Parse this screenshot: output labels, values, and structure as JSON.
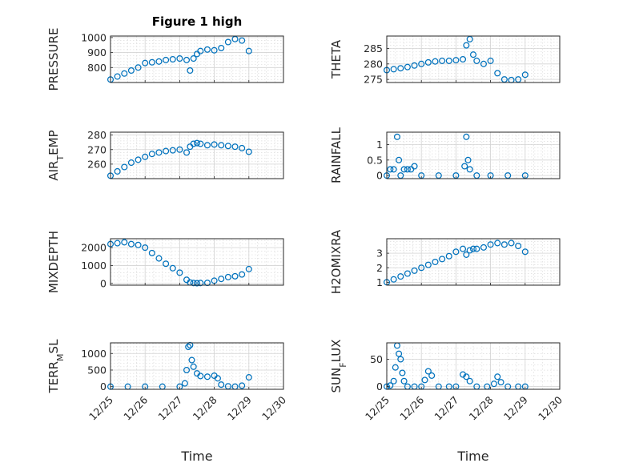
{
  "chart_data": [
    {
      "type": "scatter",
      "title": "Figure 1 high",
      "ylabel": "PRESSURE",
      "ylim": [
        700,
        1010
      ],
      "yticks": [
        800,
        900,
        1000
      ],
      "ytick_labels": [
        "800",
        "900",
        "1000"
      ],
      "xlim": [
        0,
        5
      ],
      "xlabel": "",
      "xtick_labels": [],
      "marker_color": "#0072BD",
      "grid": "on",
      "x": [
        0,
        0.2,
        0.4,
        0.6,
        0.8,
        1.0,
        1.2,
        1.4,
        1.6,
        1.8,
        2.0,
        2.2,
        2.3,
        2.4,
        2.5,
        2.6,
        2.8,
        3.0,
        3.2,
        3.4,
        3.6,
        3.8,
        4.0
      ],
      "y": [
        720,
        740,
        760,
        780,
        800,
        830,
        835,
        840,
        850,
        855,
        860,
        850,
        780,
        860,
        890,
        910,
        920,
        915,
        930,
        970,
        990,
        980,
        910
      ]
    },
    {
      "type": "scatter",
      "title": "",
      "ylabel": "THETA",
      "ylim": [
        274,
        289
      ],
      "yticks": [
        275,
        280,
        285
      ],
      "ytick_labels": [
        "275",
        "280",
        "285"
      ],
      "xlim": [
        0,
        5
      ],
      "xlabel": "",
      "xtick_labels": [],
      "marker_color": "#0072BD",
      "grid": "on",
      "x": [
        0,
        0.2,
        0.4,
        0.6,
        0.8,
        1.0,
        1.2,
        1.4,
        1.6,
        1.8,
        2.0,
        2.2,
        2.3,
        2.4,
        2.5,
        2.6,
        2.8,
        3.0,
        3.2,
        3.4,
        3.6,
        3.8,
        4.0
      ],
      "y": [
        278,
        278.3,
        278.6,
        279,
        279.5,
        280,
        280.5,
        280.8,
        281,
        281,
        281.2,
        281.5,
        286,
        288,
        283,
        281,
        280,
        281,
        277,
        275,
        274.8,
        275,
        276.5
      ]
    },
    {
      "type": "scatter",
      "title": "",
      "ylabel": "AIR_TEMP",
      "ylim": [
        250,
        282
      ],
      "yticks": [
        260,
        270,
        280
      ],
      "ytick_labels": [
        "260",
        "270",
        "280"
      ],
      "xlim": [
        0,
        5
      ],
      "xlabel": "",
      "xtick_labels": [],
      "marker_color": "#0072BD",
      "grid": "on",
      "x": [
        0,
        0.2,
        0.4,
        0.6,
        0.8,
        1.0,
        1.2,
        1.4,
        1.6,
        1.8,
        2.0,
        2.2,
        2.3,
        2.4,
        2.5,
        2.6,
        2.8,
        3.0,
        3.2,
        3.4,
        3.6,
        3.8,
        4.0
      ],
      "y": [
        252,
        255,
        258,
        261,
        263,
        265,
        267,
        268,
        269,
        269.5,
        270,
        268,
        272,
        274,
        274.5,
        274,
        273,
        273.5,
        273,
        272.5,
        272,
        271,
        268.5
      ]
    },
    {
      "type": "scatter",
      "title": "",
      "ylabel": "RAINFALL",
      "ylim": [
        -0.1,
        1.4
      ],
      "yticks": [
        0,
        0.5,
        1
      ],
      "ytick_labels": [
        "0",
        "0.5",
        "1"
      ],
      "xlim": [
        0,
        5
      ],
      "xlabel": "",
      "xtick_labels": [],
      "marker_color": "#0072BD",
      "grid": "on",
      "x": [
        0,
        0.1,
        0.2,
        0.3,
        0.35,
        0.4,
        0.5,
        0.6,
        0.7,
        0.8,
        1.0,
        1.5,
        2.0,
        2.25,
        2.3,
        2.35,
        2.4,
        2.6,
        3.0,
        3.5,
        4.0
      ],
      "y": [
        0,
        0.2,
        0.2,
        1.25,
        0.5,
        0,
        0.2,
        0.2,
        0.2,
        0.3,
        0,
        0,
        0,
        0.3,
        1.25,
        0.5,
        0.2,
        0,
        0,
        0,
        0
      ]
    },
    {
      "type": "scatter",
      "title": "",
      "ylabel": "MIXDEPTH",
      "ylim": [
        -100,
        2500
      ],
      "yticks": [
        0,
        1000,
        2000
      ],
      "ytick_labels": [
        "0",
        "1000",
        "2000"
      ],
      "xlim": [
        0,
        5
      ],
      "xlabel": "",
      "xtick_labels": [],
      "marker_color": "#0072BD",
      "grid": "on",
      "x": [
        0,
        0.2,
        0.4,
        0.6,
        0.8,
        1.0,
        1.2,
        1.4,
        1.6,
        1.8,
        2.0,
        2.2,
        2.3,
        2.4,
        2.5,
        2.6,
        2.8,
        3.0,
        3.2,
        3.4,
        3.6,
        3.8,
        4.0
      ],
      "y": [
        2200,
        2250,
        2300,
        2200,
        2150,
        2000,
        1700,
        1400,
        1100,
        850,
        600,
        200,
        50,
        20,
        10,
        20,
        30,
        150,
        250,
        350,
        400,
        500,
        800
      ]
    },
    {
      "type": "scatter",
      "title": "",
      "ylabel": "H2OMIXRA",
      "ylim": [
        0.8,
        4.0
      ],
      "yticks": [
        1,
        2,
        3
      ],
      "ytick_labels": [
        "1",
        "2",
        "3"
      ],
      "xlim": [
        0,
        5
      ],
      "xlabel": "",
      "xtick_labels": [],
      "marker_color": "#0072BD",
      "grid": "on",
      "x": [
        0,
        0.2,
        0.4,
        0.6,
        0.8,
        1.0,
        1.2,
        1.4,
        1.6,
        1.8,
        2.0,
        2.2,
        2.3,
        2.4,
        2.5,
        2.6,
        2.8,
        3.0,
        3.2,
        3.4,
        3.6,
        3.8,
        4.0
      ],
      "y": [
        1.0,
        1.2,
        1.4,
        1.6,
        1.8,
        2.0,
        2.2,
        2.4,
        2.6,
        2.8,
        3.1,
        3.3,
        2.9,
        3.2,
        3.3,
        3.3,
        3.4,
        3.6,
        3.7,
        3.6,
        3.7,
        3.5,
        3.1
      ]
    },
    {
      "type": "scatter",
      "title": "",
      "ylabel": "TERR_MSL",
      "ylim": [
        -80,
        1320
      ],
      "yticks": [
        0,
        500,
        1000
      ],
      "ytick_labels": [
        "0",
        "500",
        "1000"
      ],
      "xlim": [
        0,
        5
      ],
      "xlabel": "Time",
      "xticks": [
        0,
        1,
        2,
        3,
        4,
        5
      ],
      "xtick_labels": [
        "12/25",
        "12/26",
        "12/27",
        "12/28",
        "12/29",
        "12/30"
      ],
      "marker_color": "#0072BD",
      "grid": "on",
      "x": [
        0,
        0.5,
        1.0,
        1.5,
        2.0,
        2.15,
        2.2,
        2.25,
        2.3,
        2.35,
        2.4,
        2.5,
        2.6,
        2.8,
        3.0,
        3.1,
        3.2,
        3.4,
        3.6,
        3.8,
        4.0
      ],
      "y": [
        0,
        0,
        0,
        0,
        0,
        100,
        500,
        1200,
        1250,
        800,
        600,
        400,
        320,
        300,
        330,
        250,
        60,
        10,
        0,
        30,
        280
      ]
    },
    {
      "type": "scatter",
      "title": "",
      "ylabel": "SUN_FLUX",
      "ylim": [
        -5,
        80
      ],
      "yticks": [
        0,
        50
      ],
      "ytick_labels": [
        "0",
        "50"
      ],
      "xlim": [
        0,
        5
      ],
      "xlabel": "Time",
      "xticks": [
        0,
        1,
        2,
        3,
        4,
        5
      ],
      "xtick_labels": [
        "12/25",
        "12/26",
        "12/27",
        "12/28",
        "12/29",
        "12/30"
      ],
      "marker_color": "#0072BD",
      "grid": "on",
      "x": [
        0,
        0.1,
        0.2,
        0.25,
        0.3,
        0.35,
        0.4,
        0.45,
        0.5,
        0.6,
        0.8,
        1.0,
        1.1,
        1.2,
        1.3,
        1.5,
        1.8,
        2.0,
        2.2,
        2.3,
        2.4,
        2.6,
        2.9,
        3.1,
        3.2,
        3.3,
        3.5,
        3.8,
        4.0
      ],
      "y": [
        0,
        2,
        10,
        35,
        75,
        60,
        50,
        25,
        10,
        0,
        0,
        0,
        12,
        28,
        20,
        0,
        0,
        0,
        22,
        18,
        10,
        0,
        0,
        5,
        18,
        8,
        0,
        0,
        0
      ]
    }
  ]
}
